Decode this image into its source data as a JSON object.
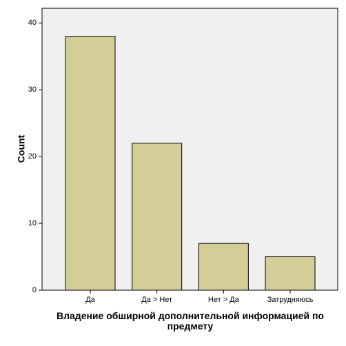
{
  "chart_data": {
    "type": "bar",
    "x_label": "Владение обширной дополнительной информацией по предмету",
    "y_label": "Count",
    "categories": [
      "Да",
      "Да > Нет",
      "Нет > Да",
      "Затрудняюсь"
    ],
    "values": [
      38,
      22,
      7,
      5
    ],
    "color": "#d3ce97",
    "ylim": [
      0,
      42.2
    ],
    "yticks": [
      0,
      10,
      20,
      30,
      40
    ],
    "grid": false
  }
}
